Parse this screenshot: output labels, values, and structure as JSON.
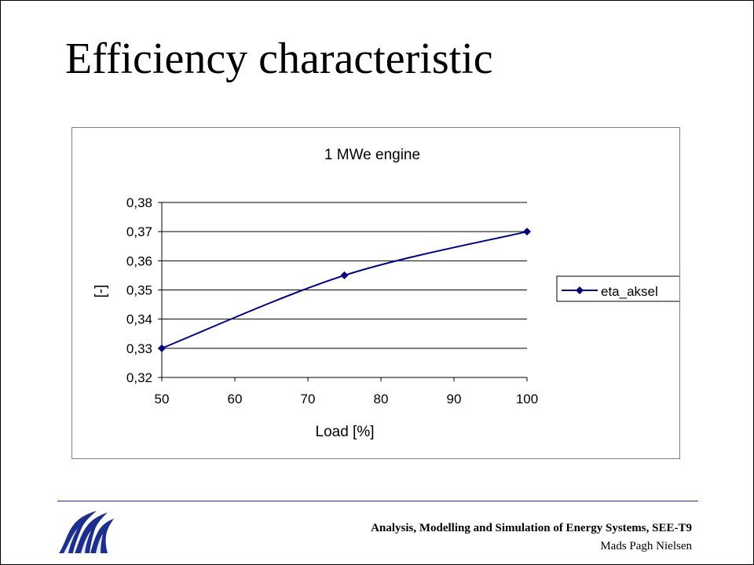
{
  "slide": {
    "title": "Efficiency characteristic"
  },
  "footer": {
    "course": "Analysis, Modelling  and Simulation of Energy Systems, SEE-T9",
    "author": "Mads Pagh Nielsen",
    "logo_icon": "university-logo-icon",
    "rule_color": "#2a2a8a"
  },
  "chart_data": {
    "type": "line",
    "title": "1 MWe engine",
    "xlabel": "Load [%]",
    "ylabel": "[-]",
    "xlim": [
      50,
      100
    ],
    "ylim": [
      0.32,
      0.38
    ],
    "xticks": [
      "50",
      "60",
      "70",
      "80",
      "90",
      "100"
    ],
    "yticks": [
      "0,32",
      "0,33",
      "0,34",
      "0,35",
      "0,36",
      "0,37",
      "0,38"
    ],
    "grid": "horizontal",
    "legend_position": "right",
    "series": [
      {
        "name": "eta_aksel",
        "color": "#000080",
        "marker": "diamond",
        "smooth": true,
        "x": [
          50,
          75,
          100
        ],
        "y": [
          0.33,
          0.355,
          0.37
        ]
      }
    ]
  }
}
